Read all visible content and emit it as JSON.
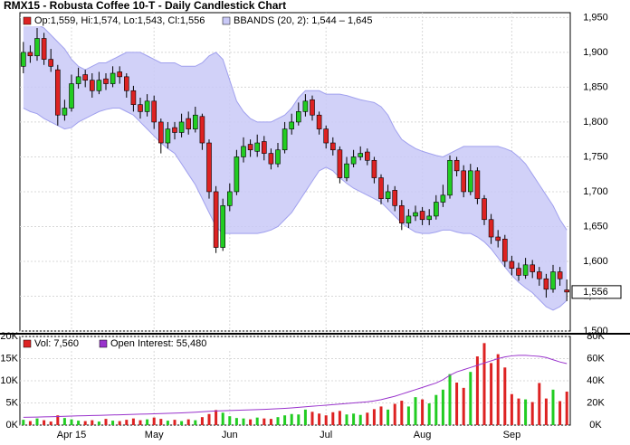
{
  "chart_data": [
    {
      "type": "candlestick",
      "title": "RMX15 - Robusta Coffee 10-T - Daily Candlestick Chart",
      "legend": "Op:1,559, Hi:1,574, Lo:1,543, Cl:1,556",
      "categories": [
        null,
        null,
        null,
        null,
        null,
        null,
        null,
        "Apr 15",
        null,
        null,
        null,
        null,
        null,
        null,
        null,
        null,
        null,
        null,
        null,
        "May",
        null,
        null,
        null,
        null,
        null,
        null,
        null,
        null,
        null,
        null,
        "Jun",
        null,
        null,
        null,
        null,
        null,
        null,
        null,
        null,
        null,
        null,
        null,
        null,
        null,
        "Jul",
        null,
        null,
        null,
        null,
        null,
        null,
        null,
        null,
        null,
        null,
        null,
        null,
        null,
        "Aug",
        null,
        null,
        null,
        null,
        null,
        null,
        null,
        null,
        null,
        null,
        null,
        null,
        "Sep",
        null,
        null,
        null,
        null,
        null,
        null,
        null,
        null
      ],
      "open": [
        1880,
        1900,
        1895,
        1920,
        1890,
        1875,
        1810,
        1820,
        1855,
        1868,
        1860,
        1845,
        1862,
        1855,
        1872,
        1865,
        1845,
        1825,
        1815,
        1830,
        1800,
        1770,
        1792,
        1785,
        1805,
        1790,
        1808,
        1770,
        1700,
        1620,
        1680,
        1700,
        1750,
        1768,
        1758,
        1772,
        1755,
        1740,
        1760,
        1790,
        1800,
        1815,
        1832,
        1810,
        1790,
        1770,
        1760,
        1720,
        1740,
        1750,
        1757,
        1745,
        1720,
        1690,
        1702,
        1680,
        1655,
        1665,
        1672,
        1660,
        1665,
        1685,
        1695,
        1745,
        1730,
        1700,
        1730,
        1690,
        1660,
        1635,
        1632,
        1600,
        1590,
        1580,
        1595,
        1585,
        1575,
        1560,
        1585,
        1559
      ],
      "high": [
        1915,
        1910,
        1935,
        1928,
        1905,
        1882,
        1832,
        1868,
        1878,
        1875,
        1870,
        1872,
        1870,
        1880,
        1880,
        1870,
        1852,
        1835,
        1840,
        1838,
        1805,
        1800,
        1800,
        1812,
        1815,
        1822,
        1812,
        1775,
        1708,
        1690,
        1712,
        1760,
        1778,
        1775,
        1782,
        1780,
        1762,
        1770,
        1800,
        1812,
        1828,
        1840,
        1838,
        1815,
        1795,
        1778,
        1765,
        1750,
        1760,
        1765,
        1762,
        1750,
        1725,
        1710,
        1708,
        1688,
        1675,
        1680,
        1678,
        1675,
        1695,
        1710,
        1752,
        1750,
        1738,
        1740,
        1735,
        1695,
        1668,
        1645,
        1638,
        1608,
        1598,
        1605,
        1602,
        1592,
        1582,
        1595,
        1592,
        1574
      ],
      "low": [
        1870,
        1885,
        1888,
        1882,
        1872,
        1795,
        1802,
        1815,
        1848,
        1850,
        1835,
        1840,
        1846,
        1850,
        1855,
        1835,
        1815,
        1805,
        1808,
        1790,
        1755,
        1762,
        1775,
        1778,
        1782,
        1785,
        1760,
        1690,
        1612,
        1615,
        1672,
        1695,
        1742,
        1750,
        1750,
        1745,
        1732,
        1735,
        1755,
        1782,
        1795,
        1808,
        1802,
        1782,
        1762,
        1752,
        1712,
        1715,
        1735,
        1745,
        1738,
        1712,
        1682,
        1685,
        1672,
        1645,
        1648,
        1658,
        1652,
        1652,
        1660,
        1678,
        1690,
        1722,
        1692,
        1695,
        1682,
        1652,
        1625,
        1620,
        1592,
        1580,
        1572,
        1575,
        1576,
        1565,
        1548,
        1555,
        1565,
        1543
      ],
      "close": [
        1900,
        1895,
        1920,
        1890,
        1880,
        1810,
        1820,
        1855,
        1865,
        1860,
        1845,
        1860,
        1855,
        1870,
        1865,
        1845,
        1825,
        1815,
        1830,
        1800,
        1770,
        1790,
        1785,
        1800,
        1790,
        1810,
        1770,
        1700,
        1620,
        1680,
        1700,
        1750,
        1765,
        1760,
        1770,
        1755,
        1740,
        1760,
        1790,
        1800,
        1815,
        1830,
        1810,
        1790,
        1770,
        1760,
        1720,
        1740,
        1750,
        1755,
        1745,
        1720,
        1690,
        1700,
        1680,
        1655,
        1665,
        1670,
        1660,
        1665,
        1685,
        1695,
        1745,
        1730,
        1700,
        1730,
        1690,
        1660,
        1635,
        1630,
        1600,
        1590,
        1580,
        1595,
        1585,
        1575,
        1560,
        1585,
        1575,
        1556
      ],
      "up_color": "#22cc22",
      "down_color": "#dd2222",
      "bands": {
        "name": "BBANDS (20, 2): 1,544 – 1,645",
        "color": "#c9c9f7",
        "line_color": "#a0a0ee",
        "upper": [
          1945,
          1945,
          1940,
          1935,
          1925,
          1915,
          1905,
          1890,
          1880,
          1875,
          1880,
          1885,
          1885,
          1890,
          1895,
          1900,
          1900,
          1900,
          1895,
          1890,
          1885,
          1885,
          1885,
          1880,
          1880,
          1880,
          1885,
          1895,
          1900,
          1890,
          1860,
          1830,
          1815,
          1805,
          1800,
          1800,
          1800,
          1805,
          1810,
          1820,
          1835,
          1845,
          1845,
          1845,
          1840,
          1840,
          1840,
          1838,
          1835,
          1832,
          1830,
          1828,
          1822,
          1810,
          1790,
          1775,
          1768,
          1762,
          1758,
          1755,
          1752,
          1750,
          1755,
          1760,
          1765,
          1765,
          1765,
          1765,
          1765,
          1765,
          1762,
          1758,
          1750,
          1740,
          1725,
          1710,
          1695,
          1680,
          1660,
          1645
        ],
        "lower": [
          1820,
          1815,
          1812,
          1805,
          1800,
          1795,
          1790,
          1792,
          1800,
          1805,
          1810,
          1815,
          1818,
          1820,
          1820,
          1815,
          1810,
          1800,
          1790,
          1780,
          1770,
          1762,
          1755,
          1740,
          1725,
          1710,
          1690,
          1670,
          1650,
          1640,
          1640,
          1640,
          1640,
          1640,
          1640,
          1642,
          1645,
          1650,
          1660,
          1670,
          1685,
          1700,
          1715,
          1730,
          1735,
          1730,
          1720,
          1712,
          1705,
          1700,
          1695,
          1690,
          1685,
          1675,
          1665,
          1655,
          1648,
          1642,
          1640,
          1640,
          1642,
          1645,
          1645,
          1642,
          1640,
          1640,
          1635,
          1628,
          1618,
          1605,
          1592,
          1580,
          1570,
          1562,
          1555,
          1545,
          1535,
          1530,
          1535,
          1544
        ]
      },
      "ylim": [
        1500,
        1957
      ],
      "yticks": [
        {
          "value": 1500,
          "label": "1,500"
        },
        {
          "value": 1550,
          "label": "1,550"
        },
        {
          "value": 1600,
          "label": "1,600"
        },
        {
          "value": 1650,
          "label": "1,650"
        },
        {
          "value": 1700,
          "label": "1,700"
        },
        {
          "value": 1750,
          "label": "1,750"
        },
        {
          "value": 1800,
          "label": "1,800"
        },
        {
          "value": 1850,
          "label": "1,850"
        },
        {
          "value": 1900,
          "label": "1,900"
        },
        {
          "value": 1950,
          "label": "1,950"
        }
      ],
      "last_price": {
        "value": 1556,
        "label": "1,556"
      },
      "grid": true
    },
    {
      "type": "bar",
      "series": [
        {
          "name": "Vol: 7,560",
          "color": "#dd2222",
          "values": [
            1200,
            900,
            1500,
            1100,
            800,
            2200,
            1600,
            1300,
            1000,
            900,
            1100,
            800,
            1400,
            1000,
            900,
            1200,
            1500,
            1100,
            1300,
            1700,
            1400,
            1000,
            1200,
            900,
            1300,
            1100,
            1800,
            2500,
            3400,
            2800,
            2000,
            1600,
            1500,
            1300,
            1700,
            1500,
            1400,
            1800,
            2200,
            2500,
            2400,
            3500,
            3000,
            2600,
            2200,
            2900,
            3200,
            2400,
            2600,
            2300,
            2800,
            3600,
            4200,
            3500,
            4800,
            5500,
            4200,
            6300,
            5800,
            4900,
            6800,
            8000,
            11500,
            9600,
            8400,
            12000,
            15500,
            18500,
            14000,
            16000,
            13000,
            7000,
            6000,
            5800,
            5200,
            9500,
            6000,
            8000,
            5400,
            7560
          ]
        },
        {
          "name": "Open Interest: 55,480",
          "color": "#9933cc",
          "type": "line",
          "axis": "y2",
          "values": [
            7000,
            7100,
            7200,
            7400,
            7600,
            7800,
            8000,
            8200,
            8400,
            8500,
            8700,
            8800,
            9000,
            9200,
            9300,
            9500,
            9700,
            9900,
            10000,
            10200,
            10400,
            10600,
            10800,
            11000,
            11300,
            11600,
            12000,
            12400,
            12800,
            13000,
            13200,
            13400,
            13600,
            13800,
            14000,
            14200,
            14500,
            14800,
            15100,
            15500,
            16000,
            16500,
            17000,
            17500,
            18000,
            18500,
            19000,
            19500,
            20000,
            20500,
            21000,
            21800,
            23000,
            24500,
            26000,
            28000,
            30000,
            32000,
            34000,
            36000,
            38000,
            41000,
            45000,
            48000,
            50000,
            52000,
            54000,
            56000,
            58000,
            60000,
            61500,
            62500,
            63000,
            63000,
            62500,
            62000,
            61000,
            59000,
            57000,
            55480
          ]
        }
      ],
      "ylim": [
        0,
        20000
      ],
      "yticks": [
        {
          "value": 0,
          "label": "0K"
        },
        {
          "value": 5000,
          "label": "5K"
        },
        {
          "value": 10000,
          "label": "10K"
        },
        {
          "value": 15000,
          "label": "15K"
        },
        {
          "value": 20000,
          "label": "20K"
        }
      ],
      "y2lim": [
        0,
        80000
      ],
      "y2ticks": [
        {
          "value": 0,
          "label": "0K"
        },
        {
          "value": 20000,
          "label": "20K"
        },
        {
          "value": 40000,
          "label": "40K"
        },
        {
          "value": 60000,
          "label": "60K"
        },
        {
          "value": 80000,
          "label": "80K"
        }
      ],
      "grid": true
    }
  ]
}
